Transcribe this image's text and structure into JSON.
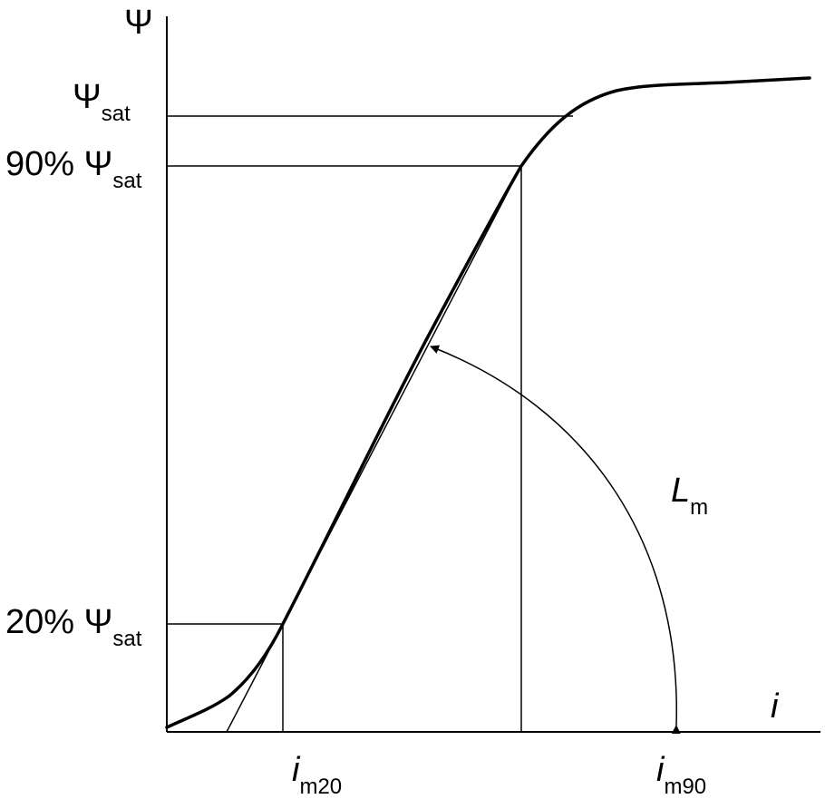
{
  "axes": {
    "y_label": "Ψ",
    "x_label": "i"
  },
  "labels": {
    "psi_sat": {
      "symbol": "Ψ",
      "subscript": "sat"
    },
    "psi_90": {
      "prefix": "90% ",
      "symbol": "Ψ",
      "subscript": "sat"
    },
    "psi_20": {
      "prefix": "20% ",
      "symbol": "Ψ",
      "subscript": "sat"
    },
    "i_m20": {
      "symbol": "i",
      "subscript": "m20"
    },
    "i_m90": {
      "symbol": "i",
      "subscript": "m90"
    },
    "inductance": {
      "symbol": "L",
      "subscript": "m"
    }
  },
  "colors": {
    "ink": "#000000",
    "background": "#ffffff"
  }
}
